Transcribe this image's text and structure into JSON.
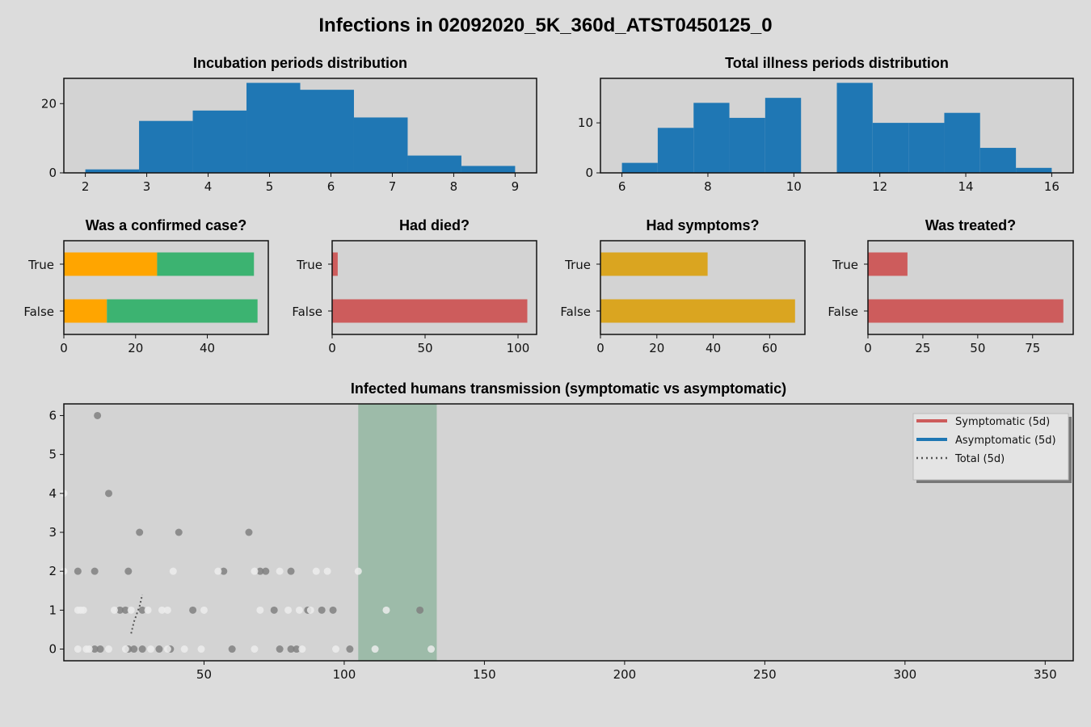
{
  "figure": {
    "title": "Infections in 02092020_5K_360d_ATST0450125_0",
    "background": "#dcdcdc",
    "axes_background": "#d3d3d3"
  },
  "chart_data": [
    {
      "id": "incubation",
      "type": "bar",
      "title": "Incubation periods distribution",
      "xlim": [
        1.65,
        9.35
      ],
      "ylim": [
        0,
        27.3
      ],
      "xticks": [
        2,
        3,
        4,
        5,
        6,
        7,
        8,
        9
      ],
      "yticks": [
        0,
        20
      ],
      "color": "#1f77b4",
      "bins": [
        {
          "x0": 2.0,
          "x1": 2.875,
          "count": 1
        },
        {
          "x0": 2.875,
          "x1": 3.75,
          "count": 15
        },
        {
          "x0": 3.75,
          "x1": 4.625,
          "count": 18
        },
        {
          "x0": 4.625,
          "x1": 5.5,
          "count": 26
        },
        {
          "x0": 5.5,
          "x1": 6.375,
          "count": 24
        },
        {
          "x0": 6.375,
          "x1": 7.25,
          "count": 16
        },
        {
          "x0": 7.25,
          "x1": 8.125,
          "count": 5
        },
        {
          "x0": 8.125,
          "x1": 9.0,
          "count": 2
        }
      ]
    },
    {
      "id": "illness",
      "type": "bar",
      "title": "Total illness periods distribution",
      "xlim": [
        5.5,
        16.5
      ],
      "ylim": [
        0,
        18.9
      ],
      "xticks": [
        6,
        8,
        10,
        12,
        14,
        16
      ],
      "yticks": [
        0,
        10
      ],
      "color": "#1f77b4",
      "bins": [
        {
          "x0": 6.0,
          "x1": 6.833,
          "count": 2
        },
        {
          "x0": 6.833,
          "x1": 7.667,
          "count": 9
        },
        {
          "x0": 7.667,
          "x1": 8.5,
          "count": 14
        },
        {
          "x0": 8.5,
          "x1": 9.333,
          "count": 11
        },
        {
          "x0": 9.333,
          "x1": 10.167,
          "count": 15
        },
        {
          "x0": 10.167,
          "x1": 11.0,
          "count": 0
        },
        {
          "x0": 11.0,
          "x1": 11.833,
          "count": 18
        },
        {
          "x0": 11.833,
          "x1": 12.667,
          "count": 10
        },
        {
          "x0": 12.667,
          "x1": 13.5,
          "count": 10
        },
        {
          "x0": 13.5,
          "x1": 14.333,
          "count": 12
        },
        {
          "x0": 14.333,
          "x1": 15.167,
          "count": 5
        },
        {
          "x0": 15.167,
          "x1": 16.0,
          "count": 1
        }
      ]
    },
    {
      "id": "confirmed",
      "type": "bar",
      "orientation": "horizontal",
      "stacked": true,
      "title": "Was a confirmed case?",
      "categories": [
        "True",
        "False"
      ],
      "series": [
        {
          "color": "#ffa500",
          "values": [
            26,
            12
          ]
        },
        {
          "color": "#3cb371",
          "values": [
            27,
            42
          ]
        }
      ],
      "xlim": [
        0,
        57
      ],
      "xticks": [
        0,
        20,
        40
      ]
    },
    {
      "id": "died",
      "type": "bar",
      "orientation": "horizontal",
      "title": "Had died?",
      "categories": [
        "True",
        "False"
      ],
      "series": [
        {
          "color": "#cd5c5c",
          "values": [
            3,
            105
          ]
        }
      ],
      "xlim": [
        0,
        110
      ],
      "xticks": [
        0,
        50,
        100
      ]
    },
    {
      "id": "symptoms",
      "type": "bar",
      "orientation": "horizontal",
      "title": "Had symptoms?",
      "categories": [
        "True",
        "False"
      ],
      "series": [
        {
          "color": "#daa520",
          "values": [
            38,
            69
          ]
        }
      ],
      "xlim": [
        0,
        72.5
      ],
      "xticks": [
        0,
        20,
        40,
        60
      ]
    },
    {
      "id": "treated",
      "type": "bar",
      "orientation": "horizontal",
      "title": "Was treated?",
      "categories": [
        "True",
        "False"
      ],
      "series": [
        {
          "color": "#cd5c5c",
          "values": [
            18,
            89
          ]
        }
      ],
      "xlim": [
        0,
        93.5
      ],
      "xticks": [
        0,
        25,
        50,
        75
      ]
    },
    {
      "id": "transmission",
      "type": "scatter",
      "title": "Infected humans transmission (symptomatic vs asymptomatic)",
      "xlim": [
        0,
        360
      ],
      "ylim": [
        -0.3,
        6.3
      ],
      "xticks": [
        50,
        100,
        150,
        200,
        250,
        300,
        350
      ],
      "yticks": [
        0,
        1,
        2,
        3,
        4,
        5,
        6
      ],
      "highlight_span": {
        "x0": 105,
        "x1": 133,
        "color": "#9dbba9"
      },
      "legend": {
        "placement": "top-right",
        "entries": [
          {
            "label": "Symptomatic (5d)",
            "color": "#cd5c5c",
            "style": "solid"
          },
          {
            "label": "Asymptomatic (5d)",
            "color": "#1f77b4",
            "style": "solid"
          },
          {
            "label": "Total (5d)",
            "color": "#555555",
            "style": "dotted"
          }
        ]
      },
      "series": [
        {
          "color": "#808080",
          "points": [
            [
              12,
              6
            ],
            [
              16,
              4
            ],
            [
              27,
              3
            ],
            [
              41,
              3
            ],
            [
              66,
              3
            ],
            [
              5,
              2
            ],
            [
              11,
              2
            ],
            [
              23,
              2
            ],
            [
              57,
              2
            ],
            [
              70,
              2
            ],
            [
              72,
              2
            ],
            [
              81,
              2
            ],
            [
              20,
              1
            ],
            [
              22,
              1
            ],
            [
              28,
              1
            ],
            [
              46,
              1
            ],
            [
              75,
              1
            ],
            [
              87,
              1
            ],
            [
              92,
              1
            ],
            [
              96,
              1
            ],
            [
              127,
              1
            ],
            [
              11,
              0
            ],
            [
              13,
              0
            ],
            [
              23,
              0
            ],
            [
              25,
              0
            ],
            [
              28,
              0
            ],
            [
              34,
              0
            ],
            [
              38,
              0
            ],
            [
              60,
              0
            ],
            [
              77,
              0
            ],
            [
              81,
              0
            ],
            [
              83,
              0
            ],
            [
              102,
              0
            ]
          ]
        },
        {
          "color": "#ececec",
          "points": [
            [
              0,
              4
            ],
            [
              0,
              2
            ],
            [
              39,
              2
            ],
            [
              55,
              2
            ],
            [
              68,
              2
            ],
            [
              77,
              2
            ],
            [
              90,
              2
            ],
            [
              94,
              2
            ],
            [
              105,
              2
            ],
            [
              5,
              1
            ],
            [
              6,
              1
            ],
            [
              7,
              1
            ],
            [
              18,
              1
            ],
            [
              24,
              1
            ],
            [
              30,
              1
            ],
            [
              35,
              1
            ],
            [
              37,
              1
            ],
            [
              50,
              1
            ],
            [
              70,
              1
            ],
            [
              80,
              1
            ],
            [
              84,
              1
            ],
            [
              88,
              1
            ],
            [
              115,
              1
            ],
            [
              5,
              0
            ],
            [
              8,
              0
            ],
            [
              9,
              0
            ],
            [
              16,
              0
            ],
            [
              22,
              0
            ],
            [
              31,
              0
            ],
            [
              37,
              0
            ],
            [
              43,
              0
            ],
            [
              49,
              0
            ],
            [
              68,
              0
            ],
            [
              85,
              0
            ],
            [
              97,
              0
            ],
            [
              111,
              0
            ],
            [
              131,
              0
            ]
          ]
        }
      ],
      "total_line": {
        "color": "#555555",
        "points": [
          [
            24,
            0.4
          ],
          [
            25,
            0.7
          ],
          [
            26,
            0.9
          ],
          [
            27,
            1.1
          ],
          [
            28,
            1.4
          ]
        ]
      }
    }
  ]
}
